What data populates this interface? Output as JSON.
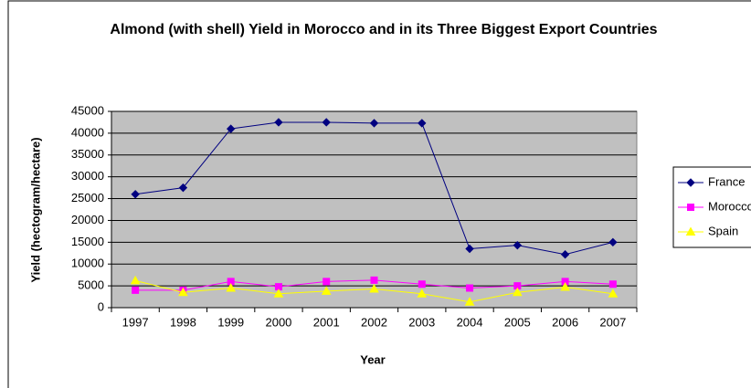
{
  "chart_data": {
    "type": "line",
    "title": "Almond (with shell) Yield in Morocco and in its Three Biggest Export Countries",
    "x_label": "Year",
    "y_label": "Yield (hectogram/hectare)",
    "categories": [
      "1997",
      "1998",
      "1999",
      "2000",
      "2001",
      "2002",
      "2003",
      "2004",
      "2005",
      "2006",
      "2007"
    ],
    "series": [
      {
        "name": "France",
        "color": "#000080",
        "marker": "diamond",
        "values": [
          26000,
          27500,
          41000,
          42500,
          42500,
          42300,
          42300,
          13500,
          14300,
          12200,
          15000
        ]
      },
      {
        "name": "Morocco",
        "color": "#ff00ff",
        "marker": "square",
        "values": [
          4000,
          4000,
          6000,
          4800,
          6000,
          6300,
          5400,
          4500,
          5000,
          6000,
          5400
        ]
      },
      {
        "name": "Spain",
        "color": "#ffff00",
        "marker": "triangle",
        "values": [
          6200,
          3500,
          4500,
          3200,
          3800,
          4300,
          3200,
          1300,
          3500,
          4700,
          3200
        ]
      }
    ],
    "ylim": [
      0,
      45000
    ],
    "yticks": [
      0,
      5000,
      10000,
      15000,
      20000,
      25000,
      30000,
      35000,
      40000,
      45000
    ],
    "grid": true
  }
}
